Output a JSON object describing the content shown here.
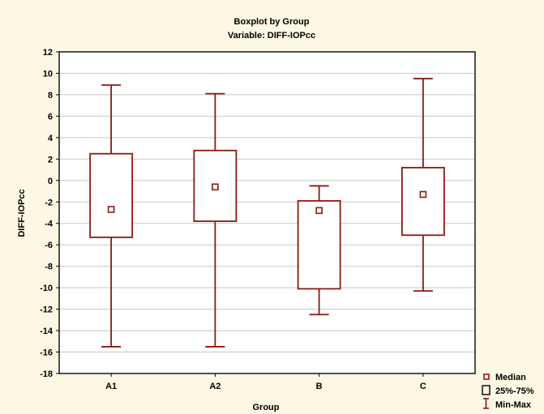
{
  "chart_data": {
    "type": "boxplot",
    "title": "Boxplot by Group",
    "subtitle": "Variable: DIFF-IOPcc",
    "xlabel": "Group",
    "ylabel": "DIFF-IOPcc",
    "ylim": [
      -18,
      12
    ],
    "yticks": [
      12,
      10,
      8,
      6,
      4,
      2,
      0,
      -2,
      -4,
      -6,
      -8,
      -10,
      -12,
      -14,
      -16,
      -18
    ],
    "grid": true,
    "legend_position": "bottom-right",
    "categories": [
      "A1",
      "A2",
      "B",
      "C"
    ],
    "series": [
      {
        "category": "A1",
        "min": -15.5,
        "q1": -5.3,
        "median": -2.7,
        "q3": 2.5,
        "max": 8.9
      },
      {
        "category": "A2",
        "min": -15.5,
        "q1": -3.8,
        "median": -0.6,
        "q3": 2.8,
        "max": 8.1
      },
      {
        "category": "B",
        "min": -12.5,
        "q1": -10.1,
        "median": -2.8,
        "q3": -1.9,
        "max": -0.5
      },
      {
        "category": "C",
        "min": -10.3,
        "q1": -5.1,
        "median": -1.3,
        "q3": 1.2,
        "max": 9.5
      }
    ],
    "legend": [
      {
        "symbol": "median",
        "label": "Median"
      },
      {
        "symbol": "box",
        "label": "25%-75%"
      },
      {
        "symbol": "whisker",
        "label": "Min-Max"
      }
    ],
    "colors": {
      "series": "#8b1a10",
      "grid": "#c8c8c8",
      "plot_bg": "#ffffff",
      "page_bg": "#fdf8e3"
    }
  }
}
